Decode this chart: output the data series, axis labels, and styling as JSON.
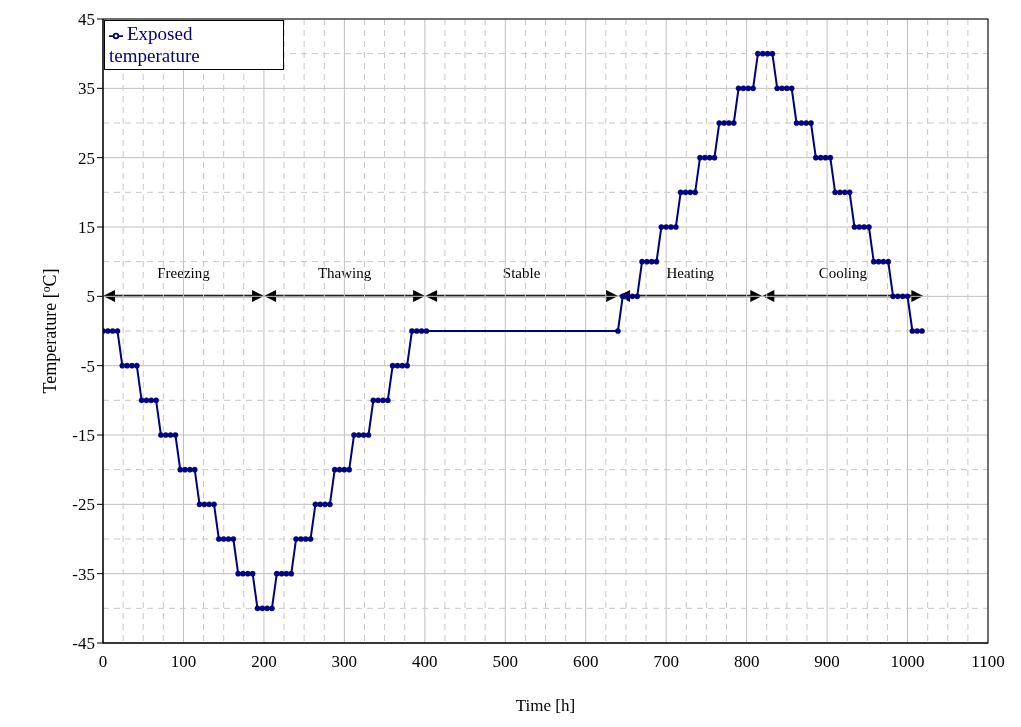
{
  "chart_data": {
    "type": "line",
    "xlabel": "Time [h]",
    "ylabel": "Temperature [$^{o}$C]",
    "x": [
      0,
      6,
      12,
      18,
      24,
      30,
      36,
      42,
      48,
      54,
      60,
      66,
      72,
      78,
      84,
      90,
      96,
      102,
      108,
      114,
      120,
      126,
      132,
      138,
      144,
      150,
      156,
      162,
      168,
      174,
      180,
      186,
      192,
      198,
      204,
      210,
      216,
      222,
      228,
      234,
      240,
      246,
      252,
      258,
      264,
      270,
      276,
      282,
      288,
      294,
      300,
      306,
      312,
      318,
      324,
      330,
      336,
      342,
      348,
      354,
      360,
      366,
      372,
      378,
      384,
      390,
      396,
      402,
      640,
      646,
      652,
      658,
      664,
      670,
      676,
      682,
      688,
      694,
      700,
      706,
      712,
      718,
      724,
      730,
      736,
      742,
      748,
      754,
      760,
      766,
      772,
      778,
      784,
      790,
      796,
      802,
      808,
      814,
      820,
      826,
      832,
      838,
      844,
      850,
      856,
      862,
      868,
      874,
      880,
      886,
      892,
      898,
      904,
      910,
      916,
      922,
      928,
      934,
      940,
      946,
      952,
      958,
      964,
      970,
      976,
      982,
      988,
      994,
      1000,
      1006,
      1012,
      1018
    ],
    "series": [
      {
        "name": "Exposed temperature",
        "color": "#000080",
        "values": [
          0,
          0,
          0,
          0,
          -5,
          -5,
          -5,
          -5,
          -10,
          -10,
          -10,
          -10,
          -15,
          -15,
          -15,
          -15,
          -20,
          -20,
          -20,
          -20,
          -25,
          -25,
          -25,
          -25,
          -30,
          -30,
          -30,
          -30,
          -35,
          -35,
          -35,
          -35,
          -40,
          -40,
          -40,
          -40,
          -35,
          -35,
          -35,
          -35,
          -30,
          -30,
          -30,
          -30,
          -25,
          -25,
          -25,
          -25,
          -20,
          -20,
          -20,
          -20,
          -15,
          -15,
          -15,
          -15,
          -10,
          -10,
          -10,
          -10,
          -5,
          -5,
          -5,
          -5,
          0,
          0,
          0,
          0,
          0,
          5,
          5,
          5,
          5,
          10,
          10,
          10,
          10,
          15,
          15,
          15,
          15,
          20,
          20,
          20,
          20,
          25,
          25,
          25,
          25,
          30,
          30,
          30,
          30,
          35,
          35,
          35,
          35,
          40,
          40,
          40,
          40,
          35,
          35,
          35,
          35,
          30,
          30,
          30,
          30,
          25,
          25,
          25,
          25,
          20,
          20,
          20,
          20,
          15,
          15,
          15,
          15,
          10,
          10,
          10,
          10,
          5,
          5,
          5,
          5,
          0,
          0,
          0
        ]
      }
    ],
    "xlim": [
      0,
      1100
    ],
    "xticks": [
      0,
      100,
      200,
      300,
      400,
      500,
      600,
      700,
      800,
      900,
      1000,
      1100
    ],
    "ylim": [
      -45,
      45
    ],
    "yticks": [
      -45,
      -35,
      -25,
      -15,
      -5,
      5,
      15,
      25,
      35,
      45
    ],
    "annotations": [
      "Freezing",
      "Thawing",
      "Stable",
      "Heating",
      "Cooling"
    ],
    "grid": true,
    "legend": "top left",
    "marker": "circle",
    "line_style": "solid"
  }
}
